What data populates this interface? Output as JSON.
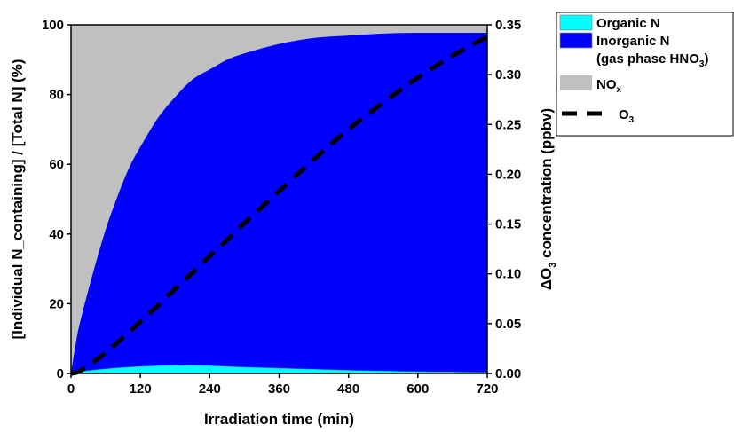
{
  "chart_data": {
    "type": "area",
    "xlabel": "Irradiation time (min)",
    "ylabel_left": "[Individual N_containing] / [Total N] (%)",
    "ylabel_right": "ΔO3 concentration (ppbv)",
    "xlim": [
      0,
      720
    ],
    "ylim_left": [
      0,
      100
    ],
    "ylim_right": [
      0,
      0.35
    ],
    "x_ticks": [
      "0",
      "120",
      "240",
      "360",
      "480",
      "600",
      "720"
    ],
    "y_left_ticks": [
      "0",
      "20",
      "40",
      "60",
      "80",
      "100"
    ],
    "y_right_ticks": [
      "0.00",
      "0.05",
      "0.10",
      "0.15",
      "0.20",
      "0.25",
      "0.30",
      "0.35"
    ],
    "x": [
      0,
      10,
      20,
      40,
      60,
      80,
      100,
      120,
      150,
      180,
      210,
      240,
      270,
      300,
      360,
      420,
      480,
      540,
      600,
      660,
      720
    ],
    "series": [
      {
        "name": "Organic N",
        "axis": "left",
        "color": "#00ffff",
        "values": [
          0,
          0.3,
          0.6,
          1.0,
          1.3,
          1.6,
          1.8,
          2.0,
          2.2,
          2.3,
          2.3,
          2.2,
          2.0,
          1.8,
          1.5,
          1.2,
          0.9,
          0.7,
          0.5,
          0.4,
          0.3
        ]
      },
      {
        "name": "Inorganic N\n(gas phase HNO3)",
        "axis": "left",
        "color": "#0000ff",
        "values": [
          0,
          10,
          17,
          29,
          40,
          49,
          57,
          63,
          71,
          77,
          82,
          85,
          88,
          90,
          93,
          95,
          96,
          96.8,
          97.2,
          97.3,
          97.4
        ]
      },
      {
        "name": "NOx",
        "axis": "left",
        "color": "#c0c0c0",
        "values": [
          100,
          89.7,
          82.4,
          70,
          58.7,
          49.4,
          41.2,
          35,
          26.8,
          20.7,
          15.7,
          12.8,
          10,
          8.2,
          5.5,
          3.8,
          3.1,
          2.5,
          2.3,
          2.3,
          2.3
        ]
      },
      {
        "name": "O3",
        "axis": "right",
        "style": "dashed",
        "color": "#000000",
        "values": [
          0,
          0.001,
          0.004,
          0.012,
          0.021,
          0.031,
          0.041,
          0.052,
          0.068,
          0.085,
          0.101,
          0.118,
          0.134,
          0.151,
          0.183,
          0.215,
          0.245,
          0.272,
          0.297,
          0.319,
          0.338
        ]
      }
    ],
    "legend": {
      "position": "right",
      "entries": [
        {
          "label": "Organic N",
          "swatch": "#00ffff"
        },
        {
          "label": "Inorganic N",
          "sub": "(gas phase HNO",
          "sub_sub": "3",
          "sub_end": ")",
          "swatch": "#0000ff"
        },
        {
          "label": "NO",
          "sub_sub": "x",
          "swatch": "#c0c0c0"
        },
        {
          "label": "O",
          "sub_sub": "3",
          "swatch": "dashed"
        }
      ]
    }
  }
}
